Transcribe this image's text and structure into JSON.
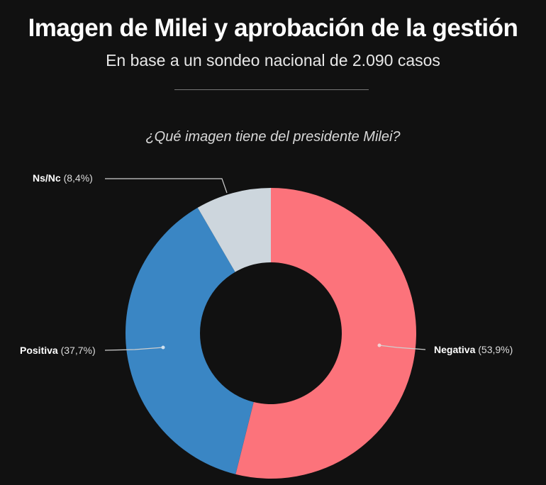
{
  "title": "Imagen de Milei y aprobación de la gestión",
  "subtitle": "En base a un sondeo nacional de 2.090 casos",
  "chart_data": {
    "type": "pie",
    "variant": "donut",
    "title": "¿Qué imagen tiene del presidente Milei?",
    "categories": [
      "Negativa",
      "Positiva",
      "Ns/Nc"
    ],
    "values": [
      53.9,
      37.7,
      8.4
    ],
    "value_labels": [
      "(53,9%)",
      "(37,7%)",
      "(8,4%)"
    ],
    "colors": [
      "#fc737b",
      "#3a86c4",
      "#cdd6dd"
    ],
    "start": "12 o'clock, clockwise"
  }
}
